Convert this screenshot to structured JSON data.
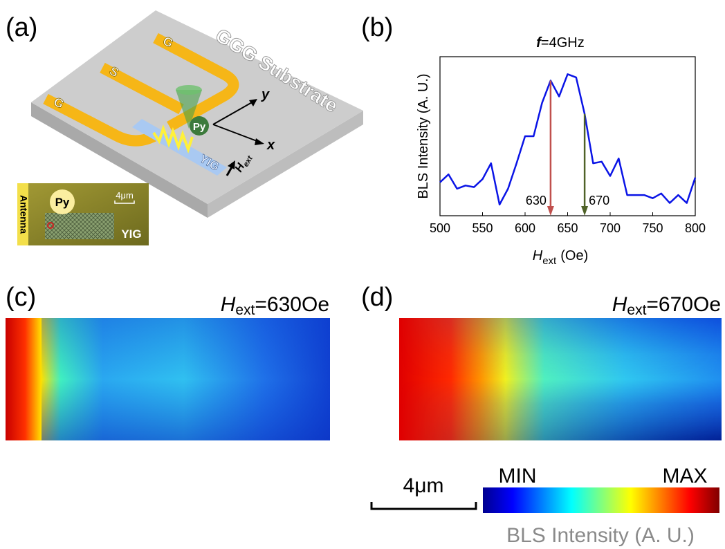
{
  "panel_a": {
    "label": "(a)",
    "substrate": "GGG Substrate",
    "electrodes": [
      "G",
      "S",
      "G"
    ],
    "py": "Py",
    "axes": [
      "y",
      "x"
    ],
    "yig": "YIG",
    "field": {
      "symbol": "H",
      "subscript": "ext"
    },
    "inset": {
      "antenna": "Antenna",
      "py": "Py",
      "scale": "4μm",
      "yig": "YIG"
    }
  },
  "chart_data": {
    "type": "line",
    "panel_label": "(b)",
    "title": {
      "symbol": "f",
      "text": "=4GHz"
    },
    "y_label": "BLS Intensity (A. U.)",
    "x_label": {
      "symbol": "H",
      "subscript": "ext",
      "unit": "(Oe)"
    },
    "x": [
      500,
      510,
      520,
      530,
      540,
      550,
      560,
      570,
      580,
      590,
      600,
      610,
      620,
      630,
      640,
      650,
      660,
      670,
      680,
      690,
      700,
      710,
      720,
      730,
      740,
      750,
      760,
      770,
      780,
      790,
      800
    ],
    "values": [
      0.21,
      0.26,
      0.17,
      0.19,
      0.18,
      0.23,
      0.33,
      0.07,
      0.17,
      0.33,
      0.5,
      0.5,
      0.71,
      0.85,
      0.75,
      0.89,
      0.87,
      0.64,
      0.33,
      0.34,
      0.25,
      0.36,
      0.13,
      0.13,
      0.13,
      0.11,
      0.14,
      0.08,
      0.13,
      0.08,
      0.24
    ],
    "color": "#0a14e6",
    "xlim": [
      500,
      800
    ],
    "xticks": [
      500,
      550,
      600,
      650,
      700,
      750,
      800
    ],
    "ylim": [
      0,
      1
    ],
    "markers": [
      {
        "x": 630,
        "label": "630",
        "color": "#c0504d"
      },
      {
        "x": 670,
        "label": "670",
        "color": "#4f6228"
      }
    ]
  },
  "panel_c": {
    "label": "(c)",
    "field": {
      "symbol": "H",
      "subscript": "ext",
      "value": "=630Oe"
    }
  },
  "panel_d": {
    "label": "(d)",
    "field": {
      "symbol": "H",
      "subscript": "ext",
      "value": "=670Oe"
    }
  },
  "scale_bar": "4μm",
  "colorbar": {
    "min": "MIN",
    "max": "MAX",
    "label": "BLS Intensity (A. U.)"
  }
}
